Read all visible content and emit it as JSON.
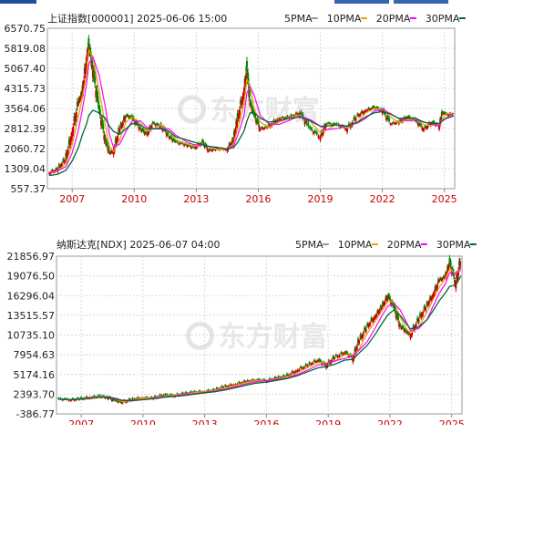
{
  "colors": {
    "up": "#cc0000",
    "down": "#008800",
    "ma5": "#999999",
    "ma10": "#e6a700",
    "ma20": "#ff00ff",
    "ma30": "#006633",
    "grid": "#d8d8d8",
    "x_tick": "#cc0000"
  },
  "watermark": {
    "text": "东方财富",
    "icon": "eastmoney-logo-icon"
  },
  "chart_data": [
    {
      "type": "line",
      "title": "上证指数[000001] 2025-06-06 15:00",
      "legend": [
        "5PMA",
        "10PMA",
        "20PMA",
        "30PMA"
      ],
      "legend_position": "top-right",
      "grid": true,
      "y_ticks": [
        "6570.75",
        "5819.08",
        "5067.40",
        "4315.73",
        "3564.06",
        "2812.39",
        "2060.72",
        "1309.04",
        "557.37"
      ],
      "ylim": [
        557.37,
        6570.75
      ],
      "x_ticks": [
        "2007",
        "2010",
        "2013",
        "2016",
        "2019",
        "2022",
        "2025"
      ],
      "xlim": [
        2005.8,
        2025.5
      ],
      "x": [
        2005.9,
        2006.3,
        2006.7,
        2007.0,
        2007.3,
        2007.5,
        2007.7,
        2007.8,
        2008.0,
        2008.3,
        2008.6,
        2008.8,
        2009.0,
        2009.3,
        2009.6,
        2009.9,
        2010.3,
        2010.6,
        2010.9,
        2011.3,
        2011.7,
        2012.0,
        2012.5,
        2012.9,
        2013.3,
        2013.6,
        2014.0,
        2014.5,
        2014.8,
        2015.0,
        2015.3,
        2015.45,
        2015.6,
        2015.8,
        2016.1,
        2016.5,
        2017.0,
        2017.5,
        2018.0,
        2018.5,
        2019.0,
        2019.3,
        2019.8,
        2020.3,
        2020.8,
        2021.2,
        2021.6,
        2022.0,
        2022.4,
        2022.8,
        2023.2,
        2023.6,
        2024.0,
        2024.4,
        2024.75,
        2024.9,
        2025.1,
        2025.45
      ],
      "close": [
        1160,
        1300,
        1700,
        2700,
        3800,
        4200,
        5500,
        6000,
        5000,
        3500,
        2400,
        1900,
        2000,
        2800,
        3300,
        3200,
        2800,
        2600,
        3000,
        2900,
        2500,
        2300,
        2200,
        2100,
        2300,
        2000,
        2050,
        2050,
        2400,
        3200,
        4200,
        5100,
        3800,
        3300,
        2800,
        2900,
        3200,
        3250,
        3400,
        2800,
        2500,
        3000,
        2950,
        2800,
        3300,
        3500,
        3600,
        3500,
        3000,
        3050,
        3250,
        3100,
        2800,
        3050,
        2900,
        3400,
        3350,
        3380
      ],
      "ma30": [
        1050,
        1100,
        1250,
        1600,
        2100,
        2600,
        3000,
        3300,
        3500,
        3400,
        3200,
        2900,
        2700,
        2600,
        2800,
        3000,
        2950,
        2800,
        2800,
        2800,
        2700,
        2500,
        2400,
        2300,
        2200,
        2150,
        2100,
        2050,
        2100,
        2300,
        2700,
        3100,
        3400,
        3400,
        3200,
        3050,
        3100,
        3200,
        3250,
        3100,
        2900,
        2900,
        2950,
        2900,
        3050,
        3250,
        3400,
        3450,
        3350,
        3200,
        3200,
        3200,
        3050,
        3000,
        3000,
        3100,
        3200,
        3280
      ],
      "notes_series": "",
      "units": ""
    },
    {
      "type": "line",
      "title": "纳斯达克[NDX] 2025-06-07 04:00",
      "legend": [
        "5PMA",
        "10PMA",
        "20PMA",
        "30PMA"
      ],
      "legend_position": "top-right",
      "grid": true,
      "y_ticks": [
        "21856.97",
        "19076.50",
        "16296.04",
        "13515.57",
        "10735.10",
        "7954.63",
        "5174.16",
        "2393.70",
        "-386.77"
      ],
      "ylim": [
        -386.77,
        21856.97
      ],
      "x_ticks": [
        "2007",
        "2010",
        "2013",
        "2016",
        "2019",
        "2022",
        "2025"
      ],
      "xlim": [
        2005.8,
        2025.5
      ],
      "x": [
        2005.9,
        2006.5,
        2007.0,
        2007.5,
        2007.9,
        2008.3,
        2008.7,
        2009.0,
        2009.5,
        2010.0,
        2010.5,
        2011.0,
        2011.5,
        2012.0,
        2012.5,
        2013.0,
        2013.5,
        2014.0,
        2014.5,
        2015.0,
        2015.5,
        2016.0,
        2016.5,
        2017.0,
        2017.5,
        2018.0,
        2018.5,
        2018.9,
        2019.3,
        2019.8,
        2020.2,
        2020.5,
        2020.9,
        2021.3,
        2021.6,
        2021.9,
        2022.2,
        2022.5,
        2022.8,
        2023.0,
        2023.4,
        2023.8,
        2024.1,
        2024.4,
        2024.7,
        2024.9,
        2025.2,
        2025.45
      ],
      "close": [
        1700,
        1600,
        1800,
        2000,
        2100,
        1900,
        1400,
        1300,
        1700,
        1900,
        1900,
        2300,
        2200,
        2500,
        2700,
        2800,
        3000,
        3500,
        3800,
        4200,
        4400,
        4300,
        4700,
        5000,
        5800,
        6500,
        7200,
        6400,
        7600,
        8300,
        7500,
        10000,
        12000,
        13500,
        14700,
        16300,
        14500,
        12000,
        11200,
        10800,
        13000,
        15000,
        16500,
        18500,
        19000,
        21000,
        18000,
        21700
      ],
      "ma30": [
        1700,
        1650,
        1700,
        1850,
        1950,
        1950,
        1700,
        1500,
        1500,
        1600,
        1750,
        1950,
        2100,
        2200,
        2400,
        2600,
        2750,
        3000,
        3300,
        3650,
        3950,
        4100,
        4350,
        4600,
        5000,
        5550,
        6100,
        6300,
        6600,
        7200,
        7300,
        8200,
        9300,
        10900,
        12300,
        13600,
        14300,
        13500,
        12300,
        11600,
        11900,
        12900,
        14200,
        15600,
        16700,
        17600,
        17800,
        19100
      ],
      "units": ""
    }
  ]
}
